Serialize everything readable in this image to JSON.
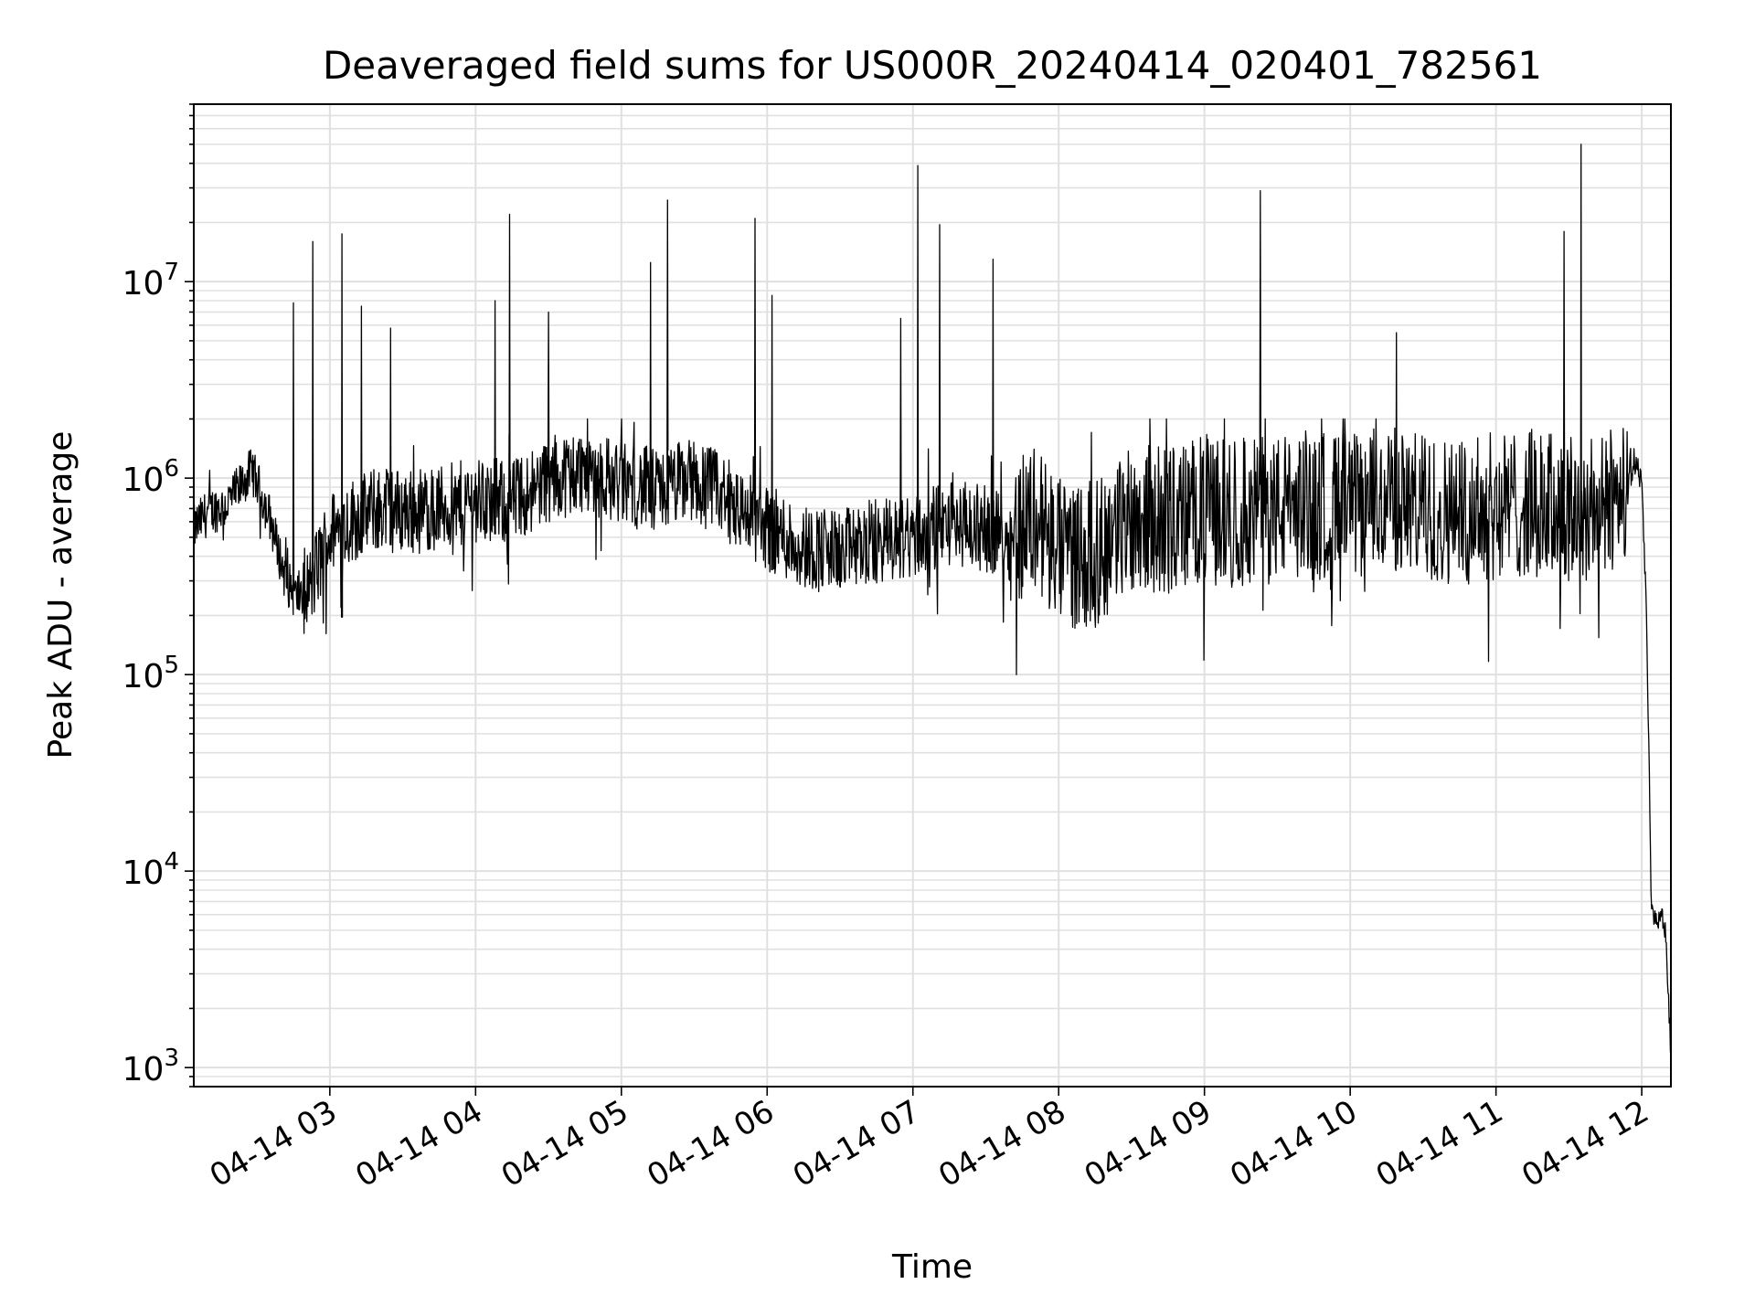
{
  "chart_data": {
    "type": "line",
    "title": "Deaveraged field sums for US000R_20240414_020401_782561",
    "xlabel": "Time",
    "ylabel": "Peak ADU - average",
    "yscale": "log",
    "ylim": [
      800,
      80000000
    ],
    "xlim": [
      "04-14 02:04",
      "04-14 12:12"
    ],
    "grid": true,
    "line_color": "#000000",
    "y_ticks": [
      {
        "base": "10",
        "exp": "3",
        "value": 1000
      },
      {
        "base": "10",
        "exp": "4",
        "value": 10000
      },
      {
        "base": "10",
        "exp": "5",
        "value": 100000
      },
      {
        "base": "10",
        "exp": "6",
        "value": 1000000
      },
      {
        "base": "10",
        "exp": "7",
        "value": 10000000
      }
    ],
    "x_ticks": [
      {
        "label": "04-14 03",
        "hours": 1
      },
      {
        "label": "04-14 04",
        "hours": 2
      },
      {
        "label": "04-14 05",
        "hours": 3
      },
      {
        "label": "04-14 06",
        "hours": 4
      },
      {
        "label": "04-14 07",
        "hours": 5
      },
      {
        "label": "04-14 08",
        "hours": 6
      },
      {
        "label": "04-14 09",
        "hours": 7
      },
      {
        "label": "04-14 10",
        "hours": 8
      },
      {
        "label": "04-14 11",
        "hours": 9
      },
      {
        "label": "04-14 12",
        "hours": 10
      }
    ],
    "series": [
      {
        "x": [
          "04-14 02:04",
          "04-14 02:10",
          "04-14 02:17",
          "04-14 02:23",
          "04-14 02:28",
          "04-14 02:35",
          "04-14 02:42",
          "04-14 02:46",
          "04-14 02:52",
          "04-14 03:00",
          "04-14 03:10",
          "04-14 03:20",
          "04-14 03:35",
          "04-14 03:50",
          "04-14 04:00",
          "04-14 04:15",
          "04-14 04:30",
          "04-14 04:45",
          "04-14 05:00",
          "04-14 05:15",
          "04-14 05:30",
          "04-14 05:45",
          "04-14 06:00",
          "04-14 06:15",
          "04-14 06:30",
          "04-14 06:45",
          "04-14 07:00",
          "04-14 07:15",
          "04-14 07:30",
          "04-14 07:40",
          "04-14 07:50",
          "04-14 08:00",
          "04-14 08:15",
          "04-14 08:30",
          "04-14 08:45",
          "04-14 09:00",
          "04-14 09:15",
          "04-14 09:30",
          "04-14 09:45",
          "04-14 10:00",
          "04-14 10:15",
          "04-14 10:30",
          "04-14 10:45",
          "04-14 11:00",
          "04-14 11:15",
          "04-14 11:30",
          "04-14 11:45",
          "04-14 11:53",
          "04-14 11:58",
          "04-14 12:00",
          "04-14 12:02",
          "04-14 12:04",
          "04-14 12:06",
          "04-14 12:08",
          "04-14 12:10",
          "04-14 12:12"
        ],
        "y": [
          550000,
          680000,
          720000,
          900000,
          1100000,
          650000,
          300000,
          250000,
          280000,
          520000,
          620000,
          700000,
          680000,
          720000,
          780000,
          750000,
          1000000,
          1100000,
          950000,
          850000,
          1000000,
          750000,
          560000,
          450000,
          420000,
          480000,
          500000,
          600000,
          550000,
          500000,
          650000,
          420000,
          400000,
          650000,
          600000,
          700000,
          650000,
          700000,
          750000,
          700000,
          800000,
          700000,
          680000,
          720000,
          750000,
          700000,
          680000,
          1000000,
          1200000,
          900000,
          200000,
          6000,
          5500,
          6200,
          4500,
          1200
        ],
        "noise_range": [
          100000,
          2000000
        ],
        "spikes": [
          {
            "x": "04-14 02:45",
            "y": 7800000
          },
          {
            "x": "04-14 02:53",
            "y": 16000000
          },
          {
            "x": "04-14 03:05",
            "y": 17500000
          },
          {
            "x": "04-14 03:13",
            "y": 7500000
          },
          {
            "x": "04-14 03:25",
            "y": 5800000
          },
          {
            "x": "04-14 04:08",
            "y": 8000000
          },
          {
            "x": "04-14 04:14",
            "y": 22000000
          },
          {
            "x": "04-14 04:30",
            "y": 7000000
          },
          {
            "x": "04-14 05:12",
            "y": 12500000
          },
          {
            "x": "04-14 05:19",
            "y": 26000000
          },
          {
            "x": "04-14 05:55",
            "y": 21000000
          },
          {
            "x": "04-14 06:02",
            "y": 8500000
          },
          {
            "x": "04-14 06:55",
            "y": 6500000
          },
          {
            "x": "04-14 07:02",
            "y": 39000000
          },
          {
            "x": "04-14 07:11",
            "y": 19500000
          },
          {
            "x": "04-14 07:33",
            "y": 13000000
          },
          {
            "x": "04-14 09:23",
            "y": 29000000
          },
          {
            "x": "04-14 10:19",
            "y": 5500000
          },
          {
            "x": "04-14 11:28",
            "y": 18000000
          },
          {
            "x": "04-14 11:35",
            "y": 50000000
          }
        ]
      }
    ]
  }
}
